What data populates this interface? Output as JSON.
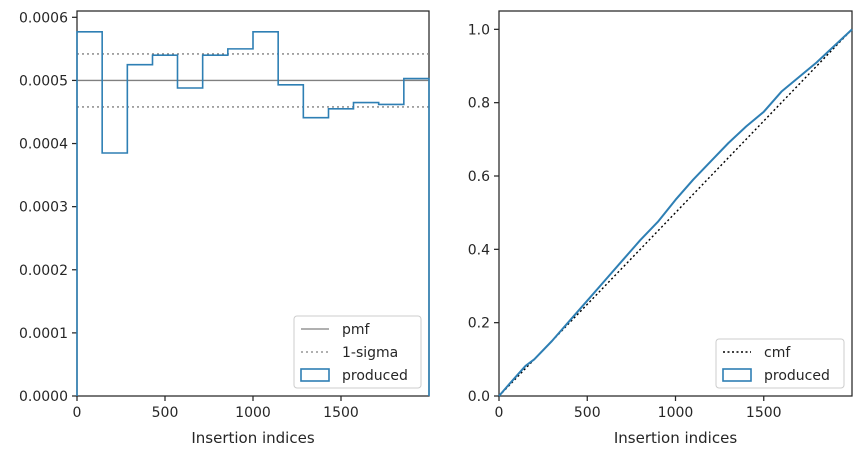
{
  "colors": {
    "histogram": "#2e7fb4",
    "pmf": "#808080",
    "sigma": "#808080",
    "cmf": "#000000",
    "axes": "#262626"
  },
  "chart_data": [
    {
      "type": "histogram-step",
      "xlabel": "Insertion indices",
      "ylabel": "",
      "xlim": [
        0,
        2000
      ],
      "ylim": [
        0,
        0.00061
      ],
      "xticks": [
        0,
        500,
        1000,
        1500
      ],
      "xtick_labels": [
        "0",
        "500",
        "1000",
        "1500"
      ],
      "yticks": [
        0,
        0.0001,
        0.0002,
        0.0003,
        0.0004,
        0.0005,
        0.0006
      ],
      "ytick_labels": [
        "0.0000",
        "0.0001",
        "0.0002",
        "0.0003",
        "0.0004",
        "0.0005",
        "0.0006"
      ],
      "bin_edges": [
        0,
        143,
        286,
        429,
        571,
        714,
        857,
        1000,
        1143,
        1286,
        1429,
        1571,
        1714,
        1857,
        2000
      ],
      "bin_values": [
        0.000577,
        0.000385,
        0.000525,
        0.00054,
        0.000488,
        0.00054,
        0.00055,
        0.000577,
        0.000493,
        0.000441,
        0.000455,
        0.000465,
        0.000462,
        0.000503
      ],
      "pmf": 0.0005,
      "sigma_band": [
        0.000458,
        0.000542
      ],
      "legend": {
        "position": "lower right",
        "entries": [
          {
            "label": "pmf",
            "style": "solid-line"
          },
          {
            "label": "1-sigma",
            "style": "dotted-line"
          },
          {
            "label": "produced",
            "style": "patch"
          }
        ]
      }
    },
    {
      "type": "line",
      "xlabel": "Insertion indices",
      "ylabel": "",
      "xlim": [
        0,
        2000
      ],
      "ylim": [
        0,
        1.05
      ],
      "xticks": [
        0,
        500,
        1000,
        1500
      ],
      "xtick_labels": [
        "0",
        "500",
        "1000",
        "1500"
      ],
      "yticks": [
        0,
        0.2,
        0.4,
        0.6,
        0.8,
        1.0
      ],
      "ytick_labels": [
        "0.0",
        "0.2",
        "0.4",
        "0.6",
        "0.8",
        "1.0"
      ],
      "series": [
        {
          "name": "cmf",
          "style": "dotted",
          "x": [
            0,
            2000
          ],
          "y": [
            0,
            1.0
          ]
        },
        {
          "name": "produced",
          "style": "solid",
          "x": [
            0,
            50,
            100,
            150,
            200,
            300,
            400,
            500,
            600,
            700,
            800,
            900,
            1000,
            1100,
            1200,
            1300,
            1400,
            1500,
            1600,
            1700,
            1800,
            1900,
            2000
          ],
          "y": [
            0,
            0.028,
            0.055,
            0.082,
            0.1,
            0.15,
            0.205,
            0.26,
            0.315,
            0.37,
            0.425,
            0.475,
            0.535,
            0.59,
            0.64,
            0.69,
            0.735,
            0.775,
            0.83,
            0.87,
            0.91,
            0.955,
            1.0
          ]
        }
      ],
      "legend": {
        "position": "lower right",
        "entries": [
          {
            "label": "cmf",
            "style": "dotted-line"
          },
          {
            "label": "produced",
            "style": "patch"
          }
        ]
      }
    }
  ]
}
